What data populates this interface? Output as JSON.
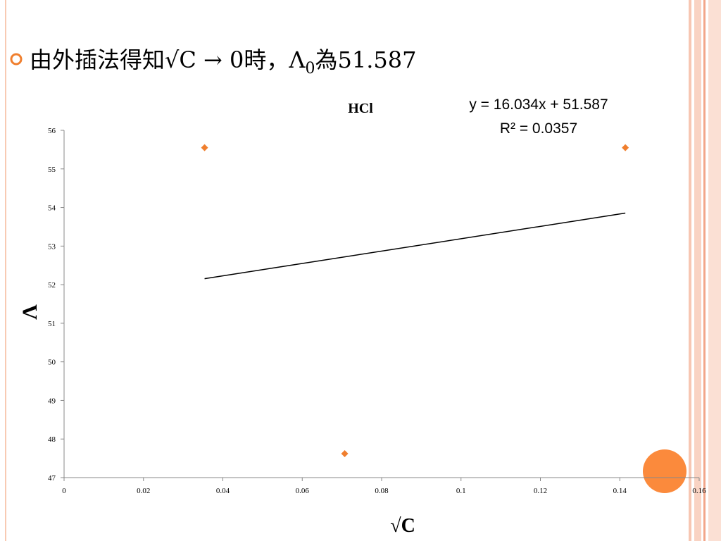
{
  "heading": {
    "before": "由外插法得知√C → 0時，Λ",
    "sub": "0",
    "after": "為51.587"
  },
  "chart_data": {
    "type": "scatter",
    "title": "HCl",
    "annotations": [
      "y = 16.034x + 51.587",
      "R² = 0.0357"
    ],
    "xlabel": "√C",
    "ylabel": "Λ",
    "x": [
      0.0354,
      0.0707,
      0.1414
    ],
    "values": [
      55.55,
      47.62,
      55.55
    ],
    "color": "#f07f2e",
    "trendline": {
      "x": [
        0.0354,
        0.1414
      ],
      "values": [
        52.155,
        53.854
      ],
      "color": "#000000"
    },
    "xlim": [
      0,
      0.16
    ],
    "xticks": [
      0,
      0.02,
      0.04,
      0.06,
      0.08,
      0.1,
      0.12,
      0.14,
      0.16
    ],
    "ylim": [
      47,
      56
    ],
    "yticks": [
      47,
      48,
      49,
      50,
      51,
      52,
      53,
      54,
      55,
      56
    ],
    "grid": false
  }
}
